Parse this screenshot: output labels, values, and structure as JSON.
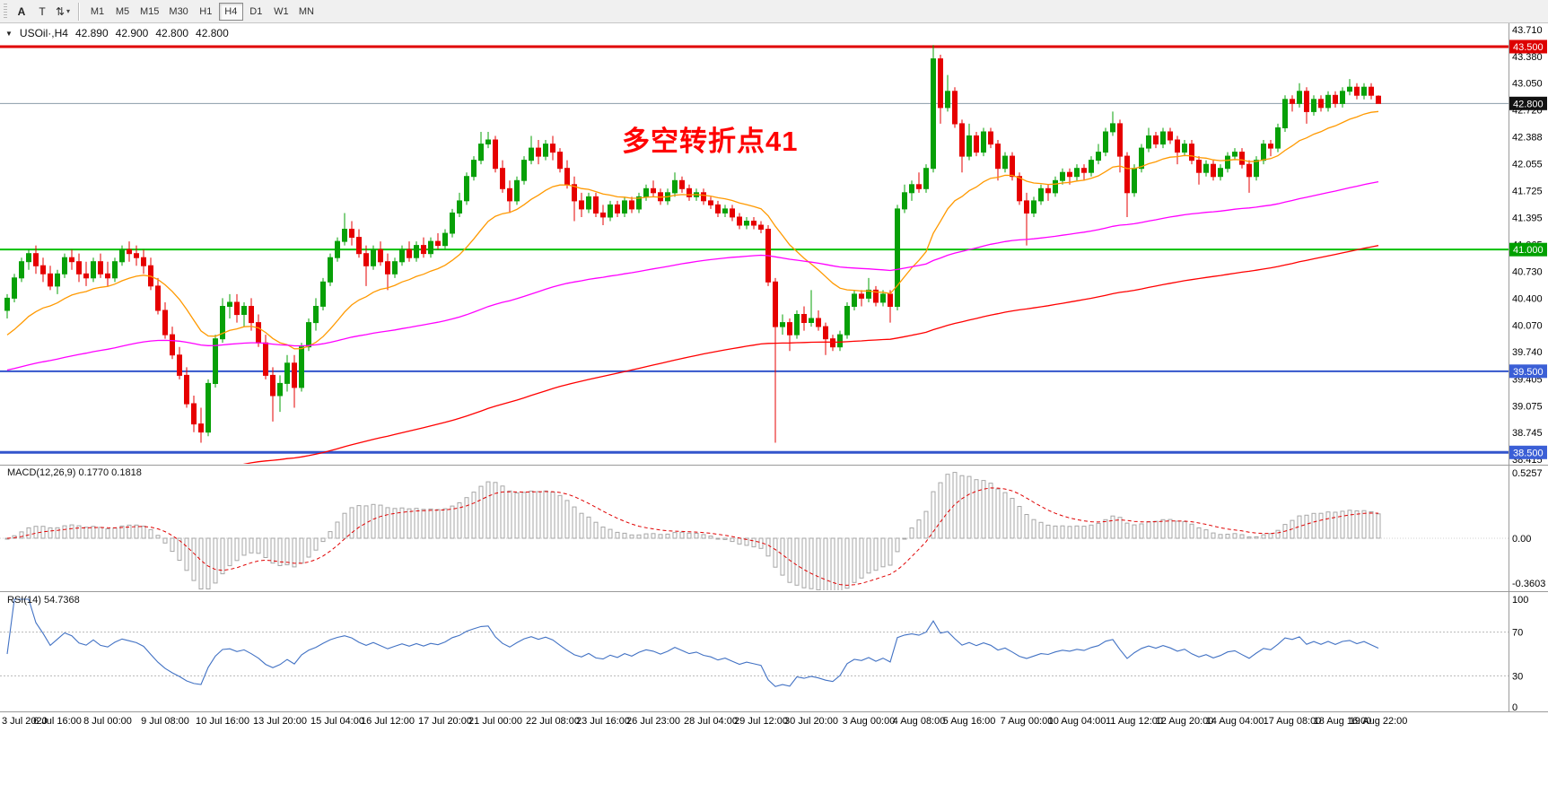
{
  "toolbar": {
    "tools": [
      {
        "label": "A"
      },
      {
        "label": "T"
      }
    ],
    "timeframes": [
      {
        "label": "M1",
        "selected": false
      },
      {
        "label": "M5",
        "selected": false
      },
      {
        "label": "M15",
        "selected": false
      },
      {
        "label": "M30",
        "selected": false
      },
      {
        "label": "H1",
        "selected": false
      },
      {
        "label": "H4",
        "selected": true
      },
      {
        "label": "D1",
        "selected": false
      },
      {
        "label": "W1",
        "selected": false
      },
      {
        "label": "MN",
        "selected": false
      }
    ]
  },
  "icons": {
    "symbol_triangle": "▼",
    "updown": "⇅",
    "caret": "▾"
  },
  "symbol_line": {
    "symbol": "USOil·,H4",
    "open": "42.890",
    "high": "42.900",
    "low": "42.800",
    "close": "42.800"
  },
  "annotation": {
    "text": "多空转折点41",
    "color": "#FF0000"
  },
  "macd_label": "MACD(12,26,9) 0.1770 0.1818",
  "rsi_label": "RSI(14) 54.7368",
  "chart_data": {
    "type": "candlestick",
    "symbol": "USOil",
    "timeframe": "H4",
    "candle_colors": {
      "up": "#07A007",
      "down": "#E60000"
    },
    "ohlc": [
      [
        40.25,
        40.45,
        40.15,
        40.4
      ],
      [
        40.4,
        40.7,
        40.35,
        40.65
      ],
      [
        40.65,
        40.9,
        40.6,
        40.85
      ],
      [
        40.85,
        41.0,
        40.75,
        40.95
      ],
      [
        40.95,
        41.05,
        40.7,
        40.8
      ],
      [
        40.8,
        40.9,
        40.6,
        40.7
      ],
      [
        40.7,
        40.8,
        40.5,
        40.55
      ],
      [
        40.55,
        40.75,
        40.45,
        40.7
      ],
      [
        40.7,
        40.95,
        40.65,
        40.9
      ],
      [
        40.9,
        41.0,
        40.75,
        40.85
      ],
      [
        40.85,
        40.95,
        40.6,
        40.7
      ],
      [
        40.7,
        40.85,
        40.55,
        40.65
      ],
      [
        40.65,
        40.9,
        40.6,
        40.85
      ],
      [
        40.85,
        40.95,
        40.65,
        40.7
      ],
      [
        40.7,
        40.85,
        40.55,
        40.65
      ],
      [
        40.65,
        40.9,
        40.6,
        40.85
      ],
      [
        40.85,
        41.05,
        40.8,
        41.0
      ],
      [
        41.0,
        41.1,
        40.85,
        40.95
      ],
      [
        40.95,
        41.05,
        40.8,
        40.9
      ],
      [
        40.9,
        41.0,
        40.7,
        40.8
      ],
      [
        40.8,
        40.9,
        40.5,
        40.55
      ],
      [
        40.55,
        40.65,
        40.2,
        40.25
      ],
      [
        40.25,
        40.35,
        39.9,
        39.95
      ],
      [
        39.95,
        40.05,
        39.65,
        39.7
      ],
      [
        39.7,
        39.8,
        39.4,
        39.45
      ],
      [
        39.45,
        39.55,
        39.05,
        39.1
      ],
      [
        39.1,
        39.2,
        38.75,
        38.85
      ],
      [
        38.85,
        39.05,
        38.62,
        38.75
      ],
      [
        38.75,
        39.4,
        38.7,
        39.35
      ],
      [
        39.35,
        39.95,
        39.3,
        39.9
      ],
      [
        39.9,
        40.4,
        39.85,
        40.3
      ],
      [
        40.3,
        40.45,
        40.15,
        40.35
      ],
      [
        40.35,
        40.45,
        40.1,
        40.2
      ],
      [
        40.2,
        40.35,
        40.05,
        40.3
      ],
      [
        40.3,
        40.4,
        40.0,
        40.1
      ],
      [
        40.1,
        40.2,
        39.8,
        39.85
      ],
      [
        39.85,
        39.95,
        39.4,
        39.45
      ],
      [
        39.45,
        39.55,
        38.88,
        39.2
      ],
      [
        39.2,
        39.45,
        39.0,
        39.35
      ],
      [
        39.35,
        39.7,
        39.25,
        39.6
      ],
      [
        39.6,
        39.7,
        39.05,
        39.3
      ],
      [
        39.3,
        39.85,
        39.25,
        39.8
      ],
      [
        39.8,
        40.15,
        39.75,
        40.1
      ],
      [
        40.1,
        40.4,
        40.0,
        40.3
      ],
      [
        40.3,
        40.65,
        40.25,
        40.6
      ],
      [
        40.6,
        40.95,
        40.55,
        40.9
      ],
      [
        40.9,
        41.15,
        40.85,
        41.1
      ],
      [
        41.1,
        41.45,
        41.05,
        41.25
      ],
      [
        41.25,
        41.35,
        41.05,
        41.15
      ],
      [
        41.15,
        41.25,
        40.9,
        40.95
      ],
      [
        40.95,
        41.05,
        40.55,
        40.8
      ],
      [
        40.8,
        41.05,
        40.75,
        41.0
      ],
      [
        41.0,
        41.1,
        40.8,
        40.85
      ],
      [
        40.85,
        40.95,
        40.5,
        40.7
      ],
      [
        40.7,
        40.9,
        40.65,
        40.85
      ],
      [
        40.85,
        41.05,
        40.8,
        41.0
      ],
      [
        41.0,
        41.1,
        40.85,
        40.9
      ],
      [
        40.9,
        41.1,
        40.85,
        41.05
      ],
      [
        41.05,
        41.15,
        40.9,
        40.95
      ],
      [
        40.95,
        41.15,
        40.9,
        41.1
      ],
      [
        41.1,
        41.2,
        41.0,
        41.05
      ],
      [
        41.05,
        41.25,
        41.0,
        41.2
      ],
      [
        41.2,
        41.5,
        41.15,
        41.45
      ],
      [
        41.45,
        41.7,
        41.4,
        41.6
      ],
      [
        41.6,
        41.95,
        41.55,
        41.9
      ],
      [
        41.9,
        42.15,
        41.85,
        42.1
      ],
      [
        42.1,
        42.45,
        42.05,
        42.3
      ],
      [
        42.3,
        42.45,
        42.25,
        42.35
      ],
      [
        42.35,
        42.4,
        41.95,
        42.0
      ],
      [
        42.0,
        42.1,
        41.7,
        41.75
      ],
      [
        41.75,
        41.85,
        41.45,
        41.6
      ],
      [
        41.6,
        41.9,
        41.55,
        41.85
      ],
      [
        41.85,
        42.15,
        41.8,
        42.1
      ],
      [
        42.1,
        42.4,
        42.05,
        42.25
      ],
      [
        42.25,
        42.35,
        42.05,
        42.15
      ],
      [
        42.15,
        42.35,
        42.1,
        42.3
      ],
      [
        42.3,
        42.4,
        42.1,
        42.2
      ],
      [
        42.2,
        42.25,
        41.95,
        42.0
      ],
      [
        42.0,
        42.1,
        41.75,
        41.8
      ],
      [
        41.8,
        41.9,
        41.35,
        41.6
      ],
      [
        41.6,
        41.7,
        41.4,
        41.5
      ],
      [
        41.5,
        41.7,
        41.45,
        41.65
      ],
      [
        41.65,
        41.7,
        41.4,
        41.45
      ],
      [
        41.45,
        41.55,
        41.3,
        41.4
      ],
      [
        41.4,
        41.6,
        41.35,
        41.55
      ],
      [
        41.55,
        41.6,
        41.4,
        41.45
      ],
      [
        41.45,
        41.65,
        41.4,
        41.6
      ],
      [
        41.6,
        41.65,
        41.45,
        41.5
      ],
      [
        41.5,
        41.7,
        41.45,
        41.65
      ],
      [
        41.65,
        41.8,
        41.6,
        41.75
      ],
      [
        41.75,
        41.85,
        41.65,
        41.7
      ],
      [
        41.7,
        41.75,
        41.55,
        41.6
      ],
      [
        41.6,
        41.75,
        41.55,
        41.7
      ],
      [
        41.7,
        41.95,
        41.65,
        41.85
      ],
      [
        41.85,
        41.9,
        41.7,
        41.75
      ],
      [
        41.75,
        41.8,
        41.6,
        41.65
      ],
      [
        41.65,
        41.75,
        41.6,
        41.7
      ],
      [
        41.7,
        41.75,
        41.55,
        41.6
      ],
      [
        41.6,
        41.65,
        41.5,
        41.55
      ],
      [
        41.55,
        41.6,
        41.4,
        41.45
      ],
      [
        41.45,
        41.55,
        41.4,
        41.5
      ],
      [
        41.5,
        41.55,
        41.35,
        41.4
      ],
      [
        41.4,
        41.45,
        41.25,
        41.3
      ],
      [
        41.3,
        41.4,
        41.25,
        41.35
      ],
      [
        41.35,
        41.4,
        41.25,
        41.3
      ],
      [
        41.3,
        41.35,
        41.2,
        41.25
      ],
      [
        41.25,
        41.3,
        40.55,
        40.6
      ],
      [
        40.6,
        40.65,
        38.62,
        40.05
      ],
      [
        40.05,
        40.2,
        39.95,
        40.1
      ],
      [
        40.1,
        40.15,
        39.75,
        39.95
      ],
      [
        39.95,
        40.25,
        39.9,
        40.2
      ],
      [
        40.2,
        40.3,
        40.0,
        40.1
      ],
      [
        40.1,
        40.5,
        40.05,
        40.15
      ],
      [
        40.15,
        40.25,
        40.0,
        40.05
      ],
      [
        40.05,
        40.1,
        39.7,
        39.9
      ],
      [
        39.9,
        39.95,
        39.75,
        39.8
      ],
      [
        39.8,
        40.0,
        39.75,
        39.95
      ],
      [
        39.95,
        40.35,
        39.9,
        40.3
      ],
      [
        40.3,
        40.5,
        40.25,
        40.45
      ],
      [
        40.45,
        40.5,
        40.3,
        40.4
      ],
      [
        40.4,
        40.65,
        40.35,
        40.5
      ],
      [
        40.5,
        40.55,
        40.3,
        40.35
      ],
      [
        40.35,
        40.5,
        40.3,
        40.45
      ],
      [
        40.45,
        40.5,
        40.1,
        40.3
      ],
      [
        40.3,
        41.55,
        40.25,
        41.5
      ],
      [
        41.5,
        41.8,
        41.45,
        41.7
      ],
      [
        41.7,
        41.85,
        41.6,
        41.8
      ],
      [
        41.8,
        41.95,
        41.7,
        41.75
      ],
      [
        41.75,
        42.05,
        41.7,
        42.0
      ],
      [
        42.0,
        43.52,
        41.95,
        43.35
      ],
      [
        43.35,
        43.4,
        42.55,
        42.75
      ],
      [
        42.75,
        43.15,
        42.7,
        42.95
      ],
      [
        42.95,
        43.0,
        42.5,
        42.55
      ],
      [
        42.55,
        42.6,
        41.95,
        42.15
      ],
      [
        42.15,
        42.55,
        42.1,
        42.4
      ],
      [
        42.4,
        42.45,
        42.15,
        42.2
      ],
      [
        42.2,
        42.5,
        42.15,
        42.45
      ],
      [
        42.45,
        42.5,
        42.25,
        42.3
      ],
      [
        42.3,
        42.35,
        41.85,
        42.0
      ],
      [
        42.0,
        42.2,
        41.95,
        42.15
      ],
      [
        42.15,
        42.2,
        41.85,
        41.9
      ],
      [
        41.9,
        41.95,
        41.55,
        41.6
      ],
      [
        41.6,
        41.7,
        41.05,
        41.45
      ],
      [
        41.45,
        41.65,
        41.4,
        41.6
      ],
      [
        41.6,
        41.8,
        41.55,
        41.75
      ],
      [
        41.75,
        41.8,
        41.6,
        41.7
      ],
      [
        41.7,
        41.9,
        41.65,
        41.85
      ],
      [
        41.85,
        42.0,
        41.8,
        41.95
      ],
      [
        41.95,
        42.0,
        41.8,
        41.9
      ],
      [
        41.9,
        42.05,
        41.85,
        42.0
      ],
      [
        42.0,
        42.05,
        41.85,
        41.95
      ],
      [
        41.95,
        42.15,
        41.9,
        42.1
      ],
      [
        42.1,
        42.3,
        42.05,
        42.2
      ],
      [
        42.2,
        42.5,
        42.15,
        42.45
      ],
      [
        42.45,
        42.7,
        42.4,
        42.55
      ],
      [
        42.55,
        42.6,
        41.95,
        42.15
      ],
      [
        42.15,
        42.2,
        41.4,
        41.7
      ],
      [
        41.7,
        42.05,
        41.65,
        42.0
      ],
      [
        42.0,
        42.3,
        41.95,
        42.25
      ],
      [
        42.25,
        42.5,
        42.2,
        42.4
      ],
      [
        42.4,
        42.45,
        42.25,
        42.3
      ],
      [
        42.3,
        42.5,
        42.25,
        42.45
      ],
      [
        42.45,
        42.5,
        42.3,
        42.35
      ],
      [
        42.35,
        42.4,
        42.05,
        42.2
      ],
      [
        42.2,
        42.35,
        42.15,
        42.3
      ],
      [
        42.3,
        42.35,
        42.05,
        42.1
      ],
      [
        42.1,
        42.15,
        41.8,
        41.95
      ],
      [
        41.95,
        42.1,
        41.9,
        42.05
      ],
      [
        42.05,
        42.1,
        41.85,
        41.9
      ],
      [
        41.9,
        42.05,
        41.85,
        42.0
      ],
      [
        42.0,
        42.2,
        41.95,
        42.15
      ],
      [
        42.15,
        42.25,
        42.1,
        42.2
      ],
      [
        42.2,
        42.25,
        42.0,
        42.05
      ],
      [
        42.05,
        42.1,
        41.7,
        41.9
      ],
      [
        41.9,
        42.15,
        41.85,
        42.1
      ],
      [
        42.1,
        42.35,
        42.05,
        42.3
      ],
      [
        42.3,
        42.35,
        42.15,
        42.25
      ],
      [
        42.25,
        42.55,
        42.2,
        42.5
      ],
      [
        42.5,
        42.9,
        42.45,
        42.85
      ],
      [
        42.85,
        42.9,
        42.7,
        42.8
      ],
      [
        42.8,
        43.05,
        42.75,
        42.95
      ],
      [
        42.95,
        43.0,
        42.55,
        42.7
      ],
      [
        42.7,
        42.9,
        42.65,
        42.85
      ],
      [
        42.85,
        42.9,
        42.7,
        42.75
      ],
      [
        42.75,
        42.95,
        42.7,
        42.9
      ],
      [
        42.9,
        42.95,
        42.75,
        42.8
      ],
      [
        42.8,
        43.0,
        42.75,
        42.95
      ],
      [
        42.95,
        43.1,
        42.9,
        43.0
      ],
      [
        43.0,
        43.05,
        42.85,
        42.9
      ],
      [
        42.9,
        43.05,
        42.85,
        43.0
      ],
      [
        43.0,
        43.05,
        42.85,
        42.9
      ],
      [
        42.89,
        42.9,
        42.8,
        42.8
      ]
    ],
    "time_labels": [
      {
        "i": 0,
        "label": "3 Jul 2020"
      },
      {
        "i": 7,
        "label": "6 Jul 16:00"
      },
      {
        "i": 14,
        "label": "8 Jul 00:00"
      },
      {
        "i": 22,
        "label": "9 Jul 08:00"
      },
      {
        "i": 30,
        "label": "10 Jul 16:00"
      },
      {
        "i": 38,
        "label": "13 Jul 20:00"
      },
      {
        "i": 46,
        "label": "15 Jul 04:00"
      },
      {
        "i": 53,
        "label": "16 Jul 12:00"
      },
      {
        "i": 61,
        "label": "17 Jul 20:00"
      },
      {
        "i": 68,
        "label": "21 Jul 00:00"
      },
      {
        "i": 76,
        "label": "22 Jul 08:00"
      },
      {
        "i": 83,
        "label": "23 Jul 16:00"
      },
      {
        "i": 90,
        "label": "26 Jul 23:00"
      },
      {
        "i": 98,
        "label": "28 Jul 04:00"
      },
      {
        "i": 105,
        "label": "29 Jul 12:00"
      },
      {
        "i": 112,
        "label": "30 Jul 20:00"
      },
      {
        "i": 120,
        "label": "3 Aug 00:00"
      },
      {
        "i": 127,
        "label": "4 Aug 08:00"
      },
      {
        "i": 134,
        "label": "5 Aug 16:00"
      },
      {
        "i": 142,
        "label": "7 Aug 00:00"
      },
      {
        "i": 149,
        "label": "10 Aug 04:00"
      },
      {
        "i": 157,
        "label": "11 Aug 12:00"
      },
      {
        "i": 164,
        "label": "12 Aug 20:00"
      },
      {
        "i": 171,
        "label": "14 Aug 04:00"
      },
      {
        "i": 179,
        "label": "17 Aug 08:00"
      },
      {
        "i": 186,
        "label": "18 Aug 16:00"
      },
      {
        "i": 191,
        "label": "19 Aug 22:00"
      }
    ],
    "price_axis": {
      "min": 38.415,
      "max": 43.71,
      "ticks": [
        "43.710",
        "43.380",
        "43.050",
        "42.720",
        "42.388",
        "42.055",
        "41.725",
        "41.395",
        "41.065",
        "40.730",
        "40.400",
        "40.070",
        "39.740",
        "39.405",
        "39.075",
        "38.745",
        "38.415"
      ],
      "badges": [
        {
          "value": 43.5,
          "label": "43.500",
          "bg": "#DD0000"
        },
        {
          "value": 42.8,
          "label": "42.800",
          "bg": "#111111"
        },
        {
          "value": 41.0,
          "label": "41.000",
          "bg": "#00A000"
        },
        {
          "value": 39.5,
          "label": "39.500",
          "bg": "#3B5FD6"
        },
        {
          "value": 38.5,
          "label": "38.500",
          "bg": "#3B5FD6"
        }
      ]
    },
    "hlines": [
      {
        "value": 43.5,
        "color": "#E00000",
        "width": 3
      },
      {
        "value": 41.0,
        "color": "#00C000",
        "width": 2
      },
      {
        "value": 39.5,
        "color": "#3355CC",
        "width": 2
      },
      {
        "value": 38.5,
        "color": "#3355CC",
        "width": 3
      }
    ],
    "price_line": {
      "value": 42.8,
      "color": "#8A9BA8"
    },
    "moving_averages": [
      {
        "period": 20,
        "seed": 39.9,
        "color": "#FF9900"
      },
      {
        "period": 120,
        "seed": 39.5,
        "color": "#FF00FF"
      },
      {
        "period": 210,
        "seed": 37.6,
        "color": "#FF0000"
      }
    ],
    "macd": {
      "params": [
        12,
        26,
        9
      ],
      "values_text": [
        "0.1770",
        "0.1818"
      ],
      "histogram_color": "#A6A6A6",
      "signal_color": "#E00000",
      "axis": [
        {
          "v": 0.5257,
          "label": "0.5257"
        },
        {
          "v": 0,
          "label": "0.00"
        },
        {
          "v": -0.3603,
          "label": "-0.3603"
        }
      ],
      "range": [
        -0.3603,
        0.5257
      ]
    },
    "rsi": {
      "period": 14,
      "value_text": "54.7368",
      "color": "#4272C4",
      "levels": [
        70,
        30
      ],
      "axis": [
        {
          "v": 100,
          "label": "100"
        },
        {
          "v": 70,
          "label": "70"
        },
        {
          "v": 30,
          "label": "30"
        },
        {
          "v": 0,
          "label": "0"
        }
      ],
      "range": [
        0,
        100
      ]
    }
  }
}
